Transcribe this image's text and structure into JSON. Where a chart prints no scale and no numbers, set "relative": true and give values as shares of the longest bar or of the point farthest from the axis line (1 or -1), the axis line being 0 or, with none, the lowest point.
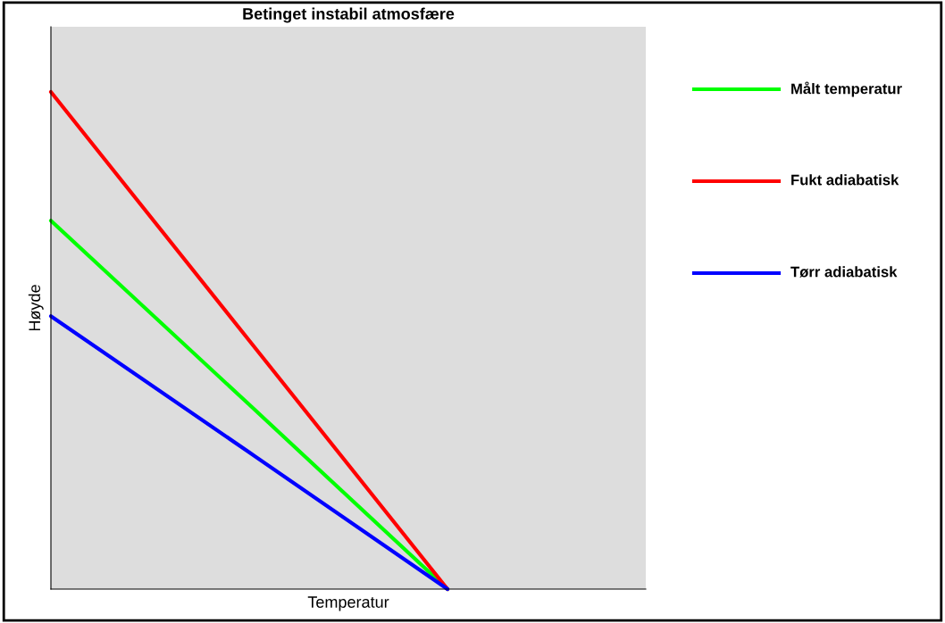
{
  "chart_data": {
    "type": "line",
    "title": "Betinget instabil atmosfære",
    "xlabel": "Temperatur",
    "ylabel": "Høyde",
    "categories": [
      null,
      null,
      null,
      null
    ],
    "relative": true,
    "legend": "right",
    "grid": false,
    "marker": "none",
    "line_style": "solid",
    "series": [
      {
        "name": "Målt temperatur",
        "color": "#00ff00",
        "values": [
          0.741,
          0.371,
          0,
          null
        ]
      },
      {
        "name": "Fukt adiabatisk",
        "color": "#ff0000",
        "values": [
          1,
          0.5,
          0,
          null
        ]
      },
      {
        "name": "Tørr adiabatisk",
        "color": "#0000ff",
        "values": [
          0.549,
          0.275,
          0,
          null
        ]
      }
    ]
  }
}
